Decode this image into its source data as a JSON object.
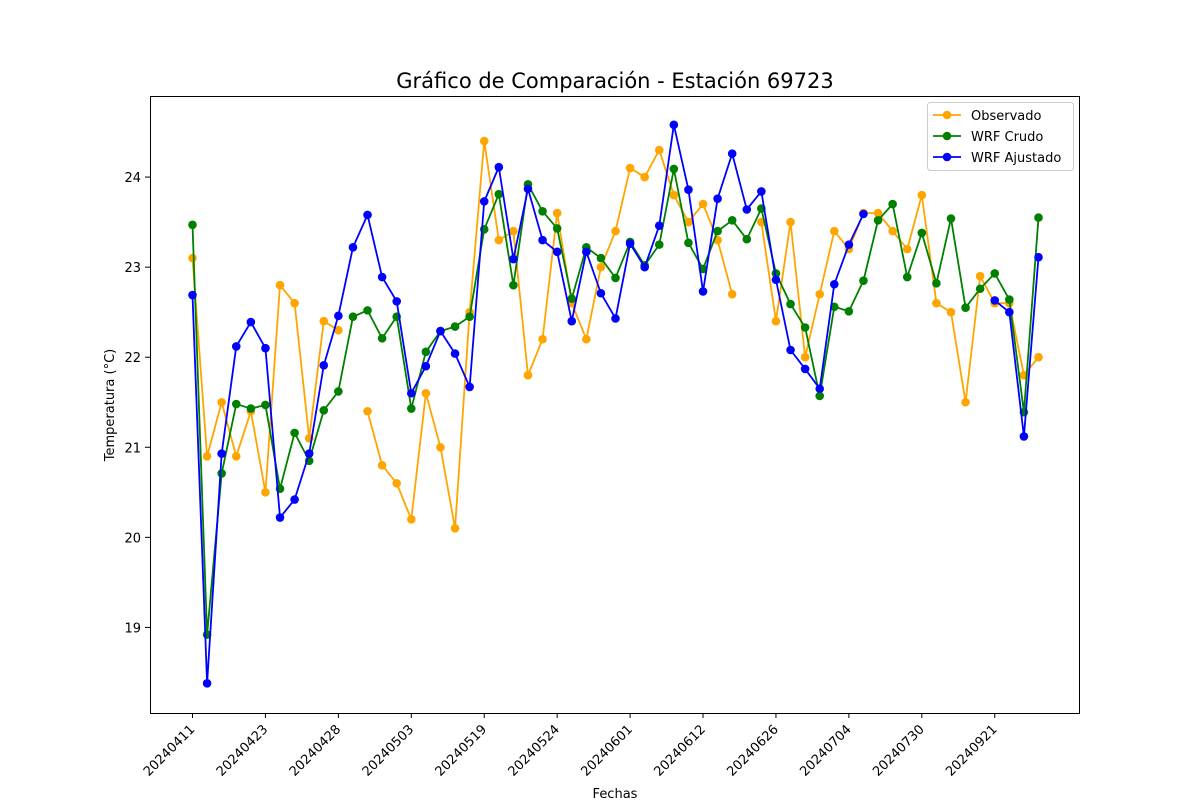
{
  "chart_data": {
    "type": "line",
    "title": "Gráfico de Comparación - Estación 69723",
    "xlabel": "Fechas",
    "ylabel": "Temperatura (°C)",
    "x_tick_labels": [
      "20240411",
      "20240423",
      "20240428",
      "20240503",
      "20240519",
      "20240524",
      "20240601",
      "20240612",
      "20240626",
      "20240704",
      "20240730",
      "20240921"
    ],
    "y_ticks": [
      19,
      20,
      21,
      22,
      23,
      24
    ],
    "ylim": [
      18.05,
      24.9
    ],
    "legend_position": "top-right",
    "grid": false,
    "series": [
      {
        "name": "Observado",
        "color": "#ffa500",
        "values": [
          23.1,
          20.9,
          21.5,
          20.9,
          21.4,
          20.5,
          22.8,
          22.6,
          21.1,
          22.4,
          22.3,
          null,
          21.4,
          20.8,
          20.6,
          20.2,
          21.6,
          21.0,
          20.1,
          22.5,
          24.4,
          23.3,
          23.4,
          21.8,
          22.2,
          23.6,
          22.6,
          22.2,
          23.0,
          23.4,
          24.1,
          24.0,
          24.3,
          23.8,
          23.5,
          23.7,
          23.3,
          22.7,
          null,
          23.5,
          22.4,
          23.5,
          22.0,
          22.7,
          23.4,
          23.2,
          23.6,
          23.6,
          23.4,
          23.2,
          23.8,
          22.6,
          22.5,
          21.5,
          22.9,
          22.6,
          22.6,
          21.8,
          22.0
        ]
      },
      {
        "name": "WRF Crudo",
        "color": "#008000",
        "values": [
          23.47,
          18.92,
          20.71,
          21.48,
          21.43,
          21.47,
          20.54,
          21.16,
          20.85,
          21.41,
          21.62,
          22.45,
          22.52,
          22.21,
          22.45,
          21.43,
          22.06,
          22.29,
          22.34,
          22.45,
          23.42,
          23.81,
          22.8,
          23.92,
          23.62,
          23.43,
          22.65,
          23.22,
          23.1,
          22.88,
          23.28,
          23.02,
          23.25,
          24.09,
          23.27,
          22.98,
          23.4,
          23.52,
          23.31,
          23.65,
          22.93,
          22.59,
          22.33,
          21.57,
          22.56,
          22.51,
          22.85,
          23.52,
          23.7,
          22.89,
          23.38,
          22.82,
          23.54,
          22.55,
          22.76,
          22.93,
          22.64,
          21.39,
          23.55
        ]
      },
      {
        "name": "WRF Ajustado",
        "color": "#0000ff",
        "values": [
          22.69,
          18.38,
          20.93,
          22.12,
          22.39,
          22.1,
          20.22,
          20.42,
          20.93,
          21.91,
          22.46,
          23.22,
          23.58,
          22.89,
          22.62,
          21.6,
          21.9,
          22.29,
          22.04,
          21.67,
          23.73,
          24.11,
          23.09,
          23.87,
          23.3,
          23.17,
          22.4,
          23.17,
          22.71,
          22.43,
          23.26,
          23.0,
          23.46,
          24.58,
          23.86,
          22.73,
          23.76,
          24.26,
          23.64,
          23.84,
          22.86,
          22.08,
          21.87,
          21.65,
          22.81,
          23.25,
          23.59,
          null,
          null,
          null,
          null,
          null,
          null,
          null,
          null,
          22.63,
          22.5,
          21.12,
          23.11
        ]
      }
    ]
  }
}
